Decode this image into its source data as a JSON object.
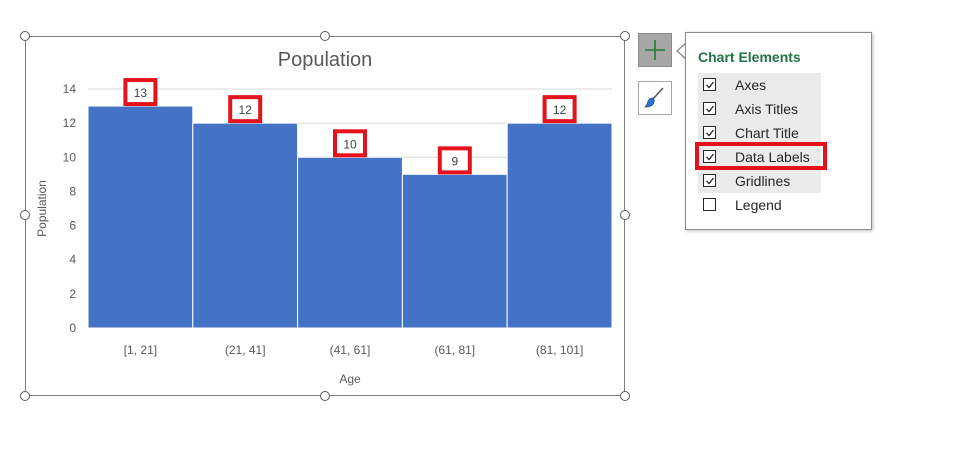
{
  "chart_data": {
    "type": "bar",
    "title": "Population",
    "xlabel": "Age",
    "ylabel": "Population",
    "categories": [
      "[1, 21]",
      "(21, 41]",
      "(41, 61]",
      "(61, 81]",
      "(81, 101]"
    ],
    "values": [
      13,
      12,
      10,
      9,
      12
    ],
    "ylim": [
      0,
      14
    ],
    "yticks": [
      "0",
      "2",
      "4",
      "6",
      "8",
      "10",
      "12",
      "14"
    ],
    "data_labels": [
      "13",
      "12",
      "10",
      "9",
      "12"
    ],
    "bar_color": "#4472c4",
    "grid": true,
    "highlight_color": "#e3121b"
  },
  "side_buttons": {
    "chart_elements_icon": "plus-icon",
    "chart_styles_icon": "brush-icon"
  },
  "chart_elements_panel": {
    "title": "Chart Elements",
    "title_color": "#217346",
    "options": [
      {
        "label": "Axes",
        "checked": true
      },
      {
        "label": "Axis Titles",
        "checked": true
      },
      {
        "label": "Chart Title",
        "checked": true
      },
      {
        "label": "Data Labels",
        "checked": true
      },
      {
        "label": "Gridlines",
        "checked": true
      },
      {
        "label": "Legend",
        "checked": false
      }
    ]
  }
}
